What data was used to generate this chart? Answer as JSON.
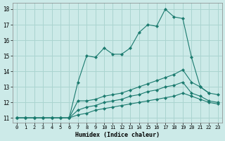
{
  "xlabel": "Humidex (Indice chaleur)",
  "background_color": "#cceae8",
  "grid_color": "#aad4d0",
  "line_color": "#1a7a6e",
  "xlim": [
    -0.5,
    23.5
  ],
  "ylim": [
    10.7,
    18.4
  ],
  "xticks": [
    0,
    1,
    2,
    3,
    4,
    5,
    6,
    7,
    8,
    9,
    10,
    11,
    12,
    13,
    14,
    15,
    16,
    17,
    18,
    19,
    20,
    21,
    22,
    23
  ],
  "yticks": [
    11,
    12,
    13,
    14,
    15,
    16,
    17,
    18
  ],
  "series": [
    {
      "x": [
        0,
        1,
        2,
        3,
        4,
        5,
        6,
        7,
        8,
        9,
        10,
        11,
        12,
        13,
        14,
        15,
        16,
        17,
        18,
        19,
        20,
        21,
        22
      ],
      "y": [
        11,
        11,
        11,
        11,
        11,
        11,
        11,
        13.3,
        15,
        14.9,
        15.5,
        15.1,
        15.1,
        15.5,
        16.5,
        17,
        16.9,
        18,
        17.5,
        17.4,
        14.9,
        13,
        12.6
      ],
      "marker": "D",
      "markersize": 2.2
    },
    {
      "x": [
        0,
        1,
        2,
        3,
        4,
        5,
        6,
        7,
        8,
        9,
        10,
        11,
        12,
        13,
        14,
        15,
        16,
        17,
        18,
        19,
        20,
        21,
        22,
        23
      ],
      "y": [
        11,
        11,
        11,
        11,
        11,
        11,
        11,
        12.1,
        12.1,
        12.2,
        12.4,
        12.5,
        12.6,
        12.8,
        13.0,
        13.2,
        13.4,
        13.6,
        13.8,
        14.1,
        13.3,
        13.0,
        12.6,
        12.5
      ],
      "marker": "D",
      "markersize": 2.2
    },
    {
      "x": [
        0,
        1,
        2,
        3,
        4,
        5,
        6,
        7,
        8,
        9,
        10,
        11,
        12,
        13,
        14,
        15,
        16,
        17,
        18,
        19,
        20,
        21,
        22,
        23
      ],
      "y": [
        11,
        11,
        11,
        11,
        11,
        11,
        11,
        11.5,
        11.7,
        11.8,
        12.0,
        12.1,
        12.2,
        12.4,
        12.5,
        12.7,
        12.8,
        13.0,
        13.1,
        13.3,
        12.6,
        12.4,
        12.1,
        12.0
      ],
      "marker": "D",
      "markersize": 2.2
    },
    {
      "x": [
        0,
        1,
        2,
        3,
        4,
        5,
        6,
        7,
        8,
        9,
        10,
        11,
        12,
        13,
        14,
        15,
        16,
        17,
        18,
        19,
        20,
        21,
        22,
        23
      ],
      "y": [
        11,
        11,
        11,
        11,
        11,
        11,
        11,
        11.2,
        11.3,
        11.5,
        11.6,
        11.7,
        11.8,
        11.9,
        12.0,
        12.1,
        12.2,
        12.3,
        12.4,
        12.6,
        12.4,
        12.2,
        12.0,
        11.9
      ],
      "marker": "D",
      "markersize": 2.2
    }
  ]
}
